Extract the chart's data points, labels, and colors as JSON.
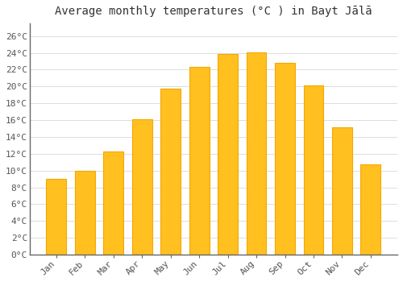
{
  "title": "Average monthly temperatures (°C ) in Bayt Jālā",
  "months": [
    "Jan",
    "Feb",
    "Mar",
    "Apr",
    "May",
    "Jun",
    "Jul",
    "Aug",
    "Sep",
    "Oct",
    "Nov",
    "Dec"
  ],
  "values": [
    9,
    10,
    12.3,
    16.1,
    19.7,
    22.3,
    23.9,
    24.1,
    22.8,
    20.1,
    15.1,
    10.7
  ],
  "bar_color": "#FFC020",
  "bar_edge_color": "#F5A800",
  "background_color": "#FFFFFF",
  "grid_color": "#DDDDDD",
  "yticks": [
    0,
    2,
    4,
    6,
    8,
    10,
    12,
    14,
    16,
    18,
    20,
    22,
    24,
    26
  ],
  "ylim": [
    0,
    27.5
  ],
  "title_fontsize": 10,
  "tick_fontsize": 8,
  "font_family": "monospace"
}
